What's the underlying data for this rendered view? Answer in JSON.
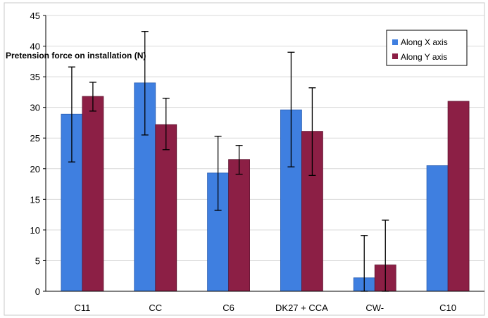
{
  "chart_data": {
    "type": "bar",
    "title": "",
    "xlabel": "",
    "ylabel": "Pretension force on installation (N)",
    "ylim": [
      0,
      45
    ],
    "yticks": [
      0,
      5,
      10,
      15,
      20,
      25,
      30,
      35,
      40,
      45
    ],
    "categories": [
      "C11",
      "CC",
      "C6",
      "DK27 + CCA",
      "CW-",
      "C10"
    ],
    "series": [
      {
        "name": "Along X axis",
        "color": "#3f7fe0",
        "values": [
          28.9,
          34.0,
          19.3,
          29.6,
          2.2,
          20.5
        ],
        "err_low": [
          21.1,
          25.5,
          13.2,
          20.3,
          0,
          20.5
        ],
        "err_high": [
          36.6,
          42.4,
          25.3,
          39.0,
          9.1,
          20.5
        ]
      },
      {
        "name": "Along Y axis",
        "color": "#8c1f45",
        "values": [
          31.8,
          27.2,
          21.5,
          26.1,
          4.3,
          31.0
        ],
        "err_low": [
          29.4,
          23.1,
          19.1,
          18.9,
          0,
          31.0
        ],
        "err_high": [
          34.1,
          31.5,
          23.8,
          33.2,
          11.6,
          31.0
        ]
      }
    ],
    "grid": true,
    "legend_position": "top-right"
  }
}
